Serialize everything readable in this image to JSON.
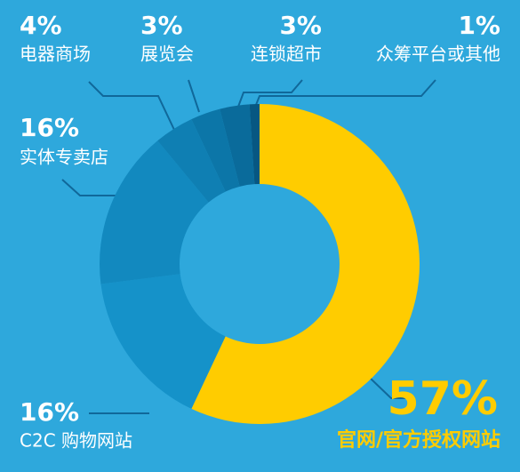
{
  "chart_data": {
    "type": "pie",
    "categories": [
      "官网/官方授权网站",
      "C2C 购物网站",
      "实体专卖店",
      "电器商场",
      "展览会",
      "连锁超市",
      "众筹平台或其他"
    ],
    "values": [
      57,
      16,
      16,
      4,
      3,
      3,
      1
    ],
    "value_labels": [
      "57%",
      "16%",
      "16%",
      "4%",
      "3%",
      "3%",
      "1%"
    ],
    "colors": [
      "#ffcc00",
      "#1592c9",
      "#1289bf",
      "#0f7fb3",
      "#0c76a8",
      "#0a6b9b",
      "#075782"
    ]
  }
}
